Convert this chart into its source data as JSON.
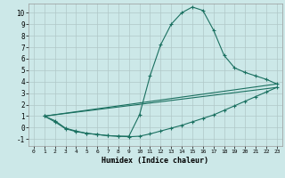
{
  "xlabel": "Humidex (Indice chaleur)",
  "bg_color": "#cce8e8",
  "grid_color": "#b0c8c8",
  "line_color": "#1a7060",
  "xlim": [
    -0.5,
    23.5
  ],
  "ylim": [
    -1.6,
    10.8
  ],
  "xticks": [
    0,
    1,
    2,
    3,
    4,
    5,
    6,
    7,
    8,
    9,
    10,
    11,
    12,
    13,
    14,
    15,
    16,
    17,
    18,
    19,
    20,
    21,
    22,
    23
  ],
  "yticks": [
    -1,
    0,
    1,
    2,
    3,
    4,
    5,
    6,
    7,
    8,
    9,
    10
  ],
  "line1_x": [
    1,
    2,
    3,
    4,
    5,
    6,
    7,
    8,
    9,
    10,
    11,
    12,
    13,
    14,
    15,
    16,
    17,
    18,
    19,
    20,
    21,
    22,
    23
  ],
  "line1_y": [
    1,
    0.6,
    -0.05,
    -0.3,
    -0.5,
    -0.6,
    -0.7,
    -0.75,
    -0.8,
    -0.75,
    -0.55,
    -0.3,
    -0.05,
    0.2,
    0.5,
    0.8,
    1.1,
    1.5,
    1.9,
    2.3,
    2.7,
    3.1,
    3.5
  ],
  "line2_x": [
    1,
    2,
    3,
    4,
    5,
    6,
    7,
    8,
    9,
    10,
    11,
    12,
    13,
    14,
    15,
    16,
    17,
    18,
    19,
    20,
    21,
    22,
    23
  ],
  "line2_y": [
    1,
    0.5,
    -0.1,
    -0.35,
    -0.5,
    -0.6,
    -0.7,
    -0.75,
    -0.75,
    1.1,
    4.5,
    7.2,
    9.0,
    10.0,
    10.5,
    10.2,
    8.5,
    6.3,
    5.2,
    4.8,
    4.5,
    4.2,
    3.8
  ],
  "line3_x": [
    1,
    23
  ],
  "line3_y": [
    1,
    3.8
  ],
  "line4_x": [
    1,
    23
  ],
  "line4_y": [
    1,
    3.5
  ]
}
